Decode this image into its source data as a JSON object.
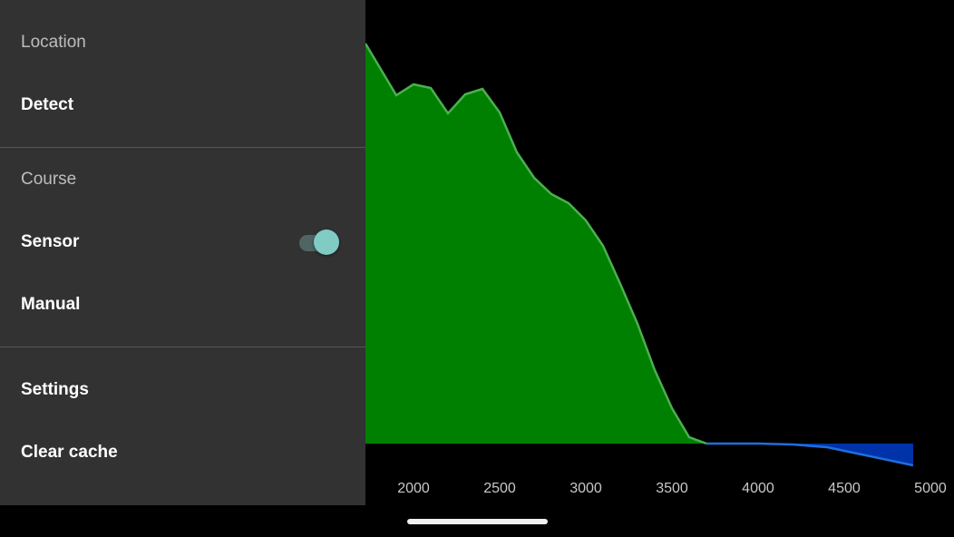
{
  "drawer": {
    "sections": [
      {
        "title": "Location",
        "items": [
          {
            "label": "Detect"
          }
        ]
      },
      {
        "title": "Course",
        "items": [
          {
            "label": "Sensor",
            "toggle": true
          },
          {
            "label": "Manual"
          }
        ]
      },
      {
        "items": [
          {
            "label": "Settings"
          },
          {
            "label": "Clear cache"
          }
        ]
      }
    ]
  },
  "chart_data": {
    "type": "area",
    "x": [
      1721,
      1900,
      2000,
      2100,
      2200,
      2300,
      2400,
      2500,
      2600,
      2700,
      2800,
      2900,
      3000,
      3100,
      3200,
      3300,
      3400,
      3500,
      3600,
      3700,
      4000,
      4200,
      4400,
      4600,
      4800,
      4900
    ],
    "series": [
      {
        "color": "#008000",
        "line_color": "#4caf50",
        "values": [
          441,
          384,
          396,
          392,
          364,
          385,
          391,
          365,
          321,
          293,
          275,
          265,
          246,
          218,
          176,
          132,
          81,
          39,
          7,
          0,
          null,
          null,
          null,
          null,
          null,
          null
        ]
      },
      {
        "color": "#0033aa",
        "line_color": "#1e6fd9",
        "values": [
          null,
          null,
          null,
          null,
          null,
          null,
          null,
          null,
          null,
          null,
          null,
          null,
          null,
          null,
          null,
          null,
          null,
          null,
          null,
          0,
          0,
          -1,
          -4,
          -12,
          -20,
          -24
        ]
      }
    ],
    "xlim": [
      1721,
      5137
    ],
    "ylim": [
      -68,
      489
    ],
    "xticks": [
      2000,
      2500,
      3000,
      3500,
      4000,
      4500,
      5000
    ]
  }
}
